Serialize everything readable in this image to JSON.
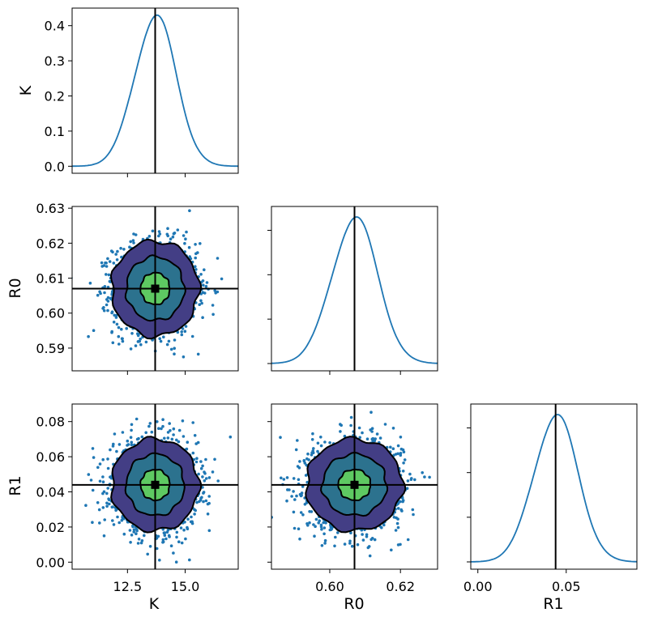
{
  "chart_data": {
    "type": "corner",
    "parameters": [
      "K",
      "R0",
      "R1"
    ],
    "truth": {
      "K": 13.7,
      "R0": 0.607,
      "R1": 0.044
    },
    "posterior_sd": {
      "K": 0.9,
      "R0": 0.0065,
      "R1": 0.0125
    },
    "axis_ranges": {
      "K": [
        10.1,
        17.3
      ],
      "R0": [
        0.5835,
        0.6305
      ],
      "R1": [
        -0.004,
        0.09
      ]
    },
    "ticks": {
      "K": [
        {
          "v": 12.5,
          "label": "12.5"
        },
        {
          "v": 15.0,
          "label": "15.0"
        }
      ],
      "R0": [
        {
          "v": 0.59,
          "label": "0.59"
        },
        {
          "v": 0.6,
          "label": "0.60"
        },
        {
          "v": 0.61,
          "label": "0.61"
        },
        {
          "v": 0.62,
          "label": "0.62"
        },
        {
          "v": 0.63,
          "label": "0.63"
        }
      ],
      "R0_bottom": [
        {
          "v": 0.6,
          "label": "0.60"
        },
        {
          "v": 0.62,
          "label": "0.62"
        }
      ],
      "R1": [
        {
          "v": 0.0,
          "label": "0.00"
        },
        {
          "v": 0.02,
          "label": "0.02"
        },
        {
          "v": 0.04,
          "label": "0.04"
        },
        {
          "v": 0.06,
          "label": "0.06"
        },
        {
          "v": 0.08,
          "label": "0.08"
        }
      ],
      "R1_bottom": [
        {
          "v": 0.0,
          "label": "0.00"
        },
        {
          "v": 0.05,
          "label": "0.05"
        }
      ]
    },
    "density_K": {
      "ylim": [
        -0.02,
        0.45
      ],
      "ticks": [
        {
          "v": 0.0,
          "label": "0.0"
        },
        {
          "v": 0.1,
          "label": "0.1"
        },
        {
          "v": 0.2,
          "label": "0.2"
        },
        {
          "v": 0.3,
          "label": "0.3"
        },
        {
          "v": 0.4,
          "label": "0.4"
        }
      ]
    },
    "contour_colors": [
      "#433e85",
      "#2c728e",
      "#5ec962"
    ],
    "contour_levels_sigma": [
      2.1,
      1.4,
      0.7
    ],
    "scatter_color": "#1f77b4",
    "line_color": "#1f77b4",
    "truth_color": "#000000"
  },
  "labels": {
    "K": "K",
    "R0": "R0",
    "R1": "R1"
  }
}
